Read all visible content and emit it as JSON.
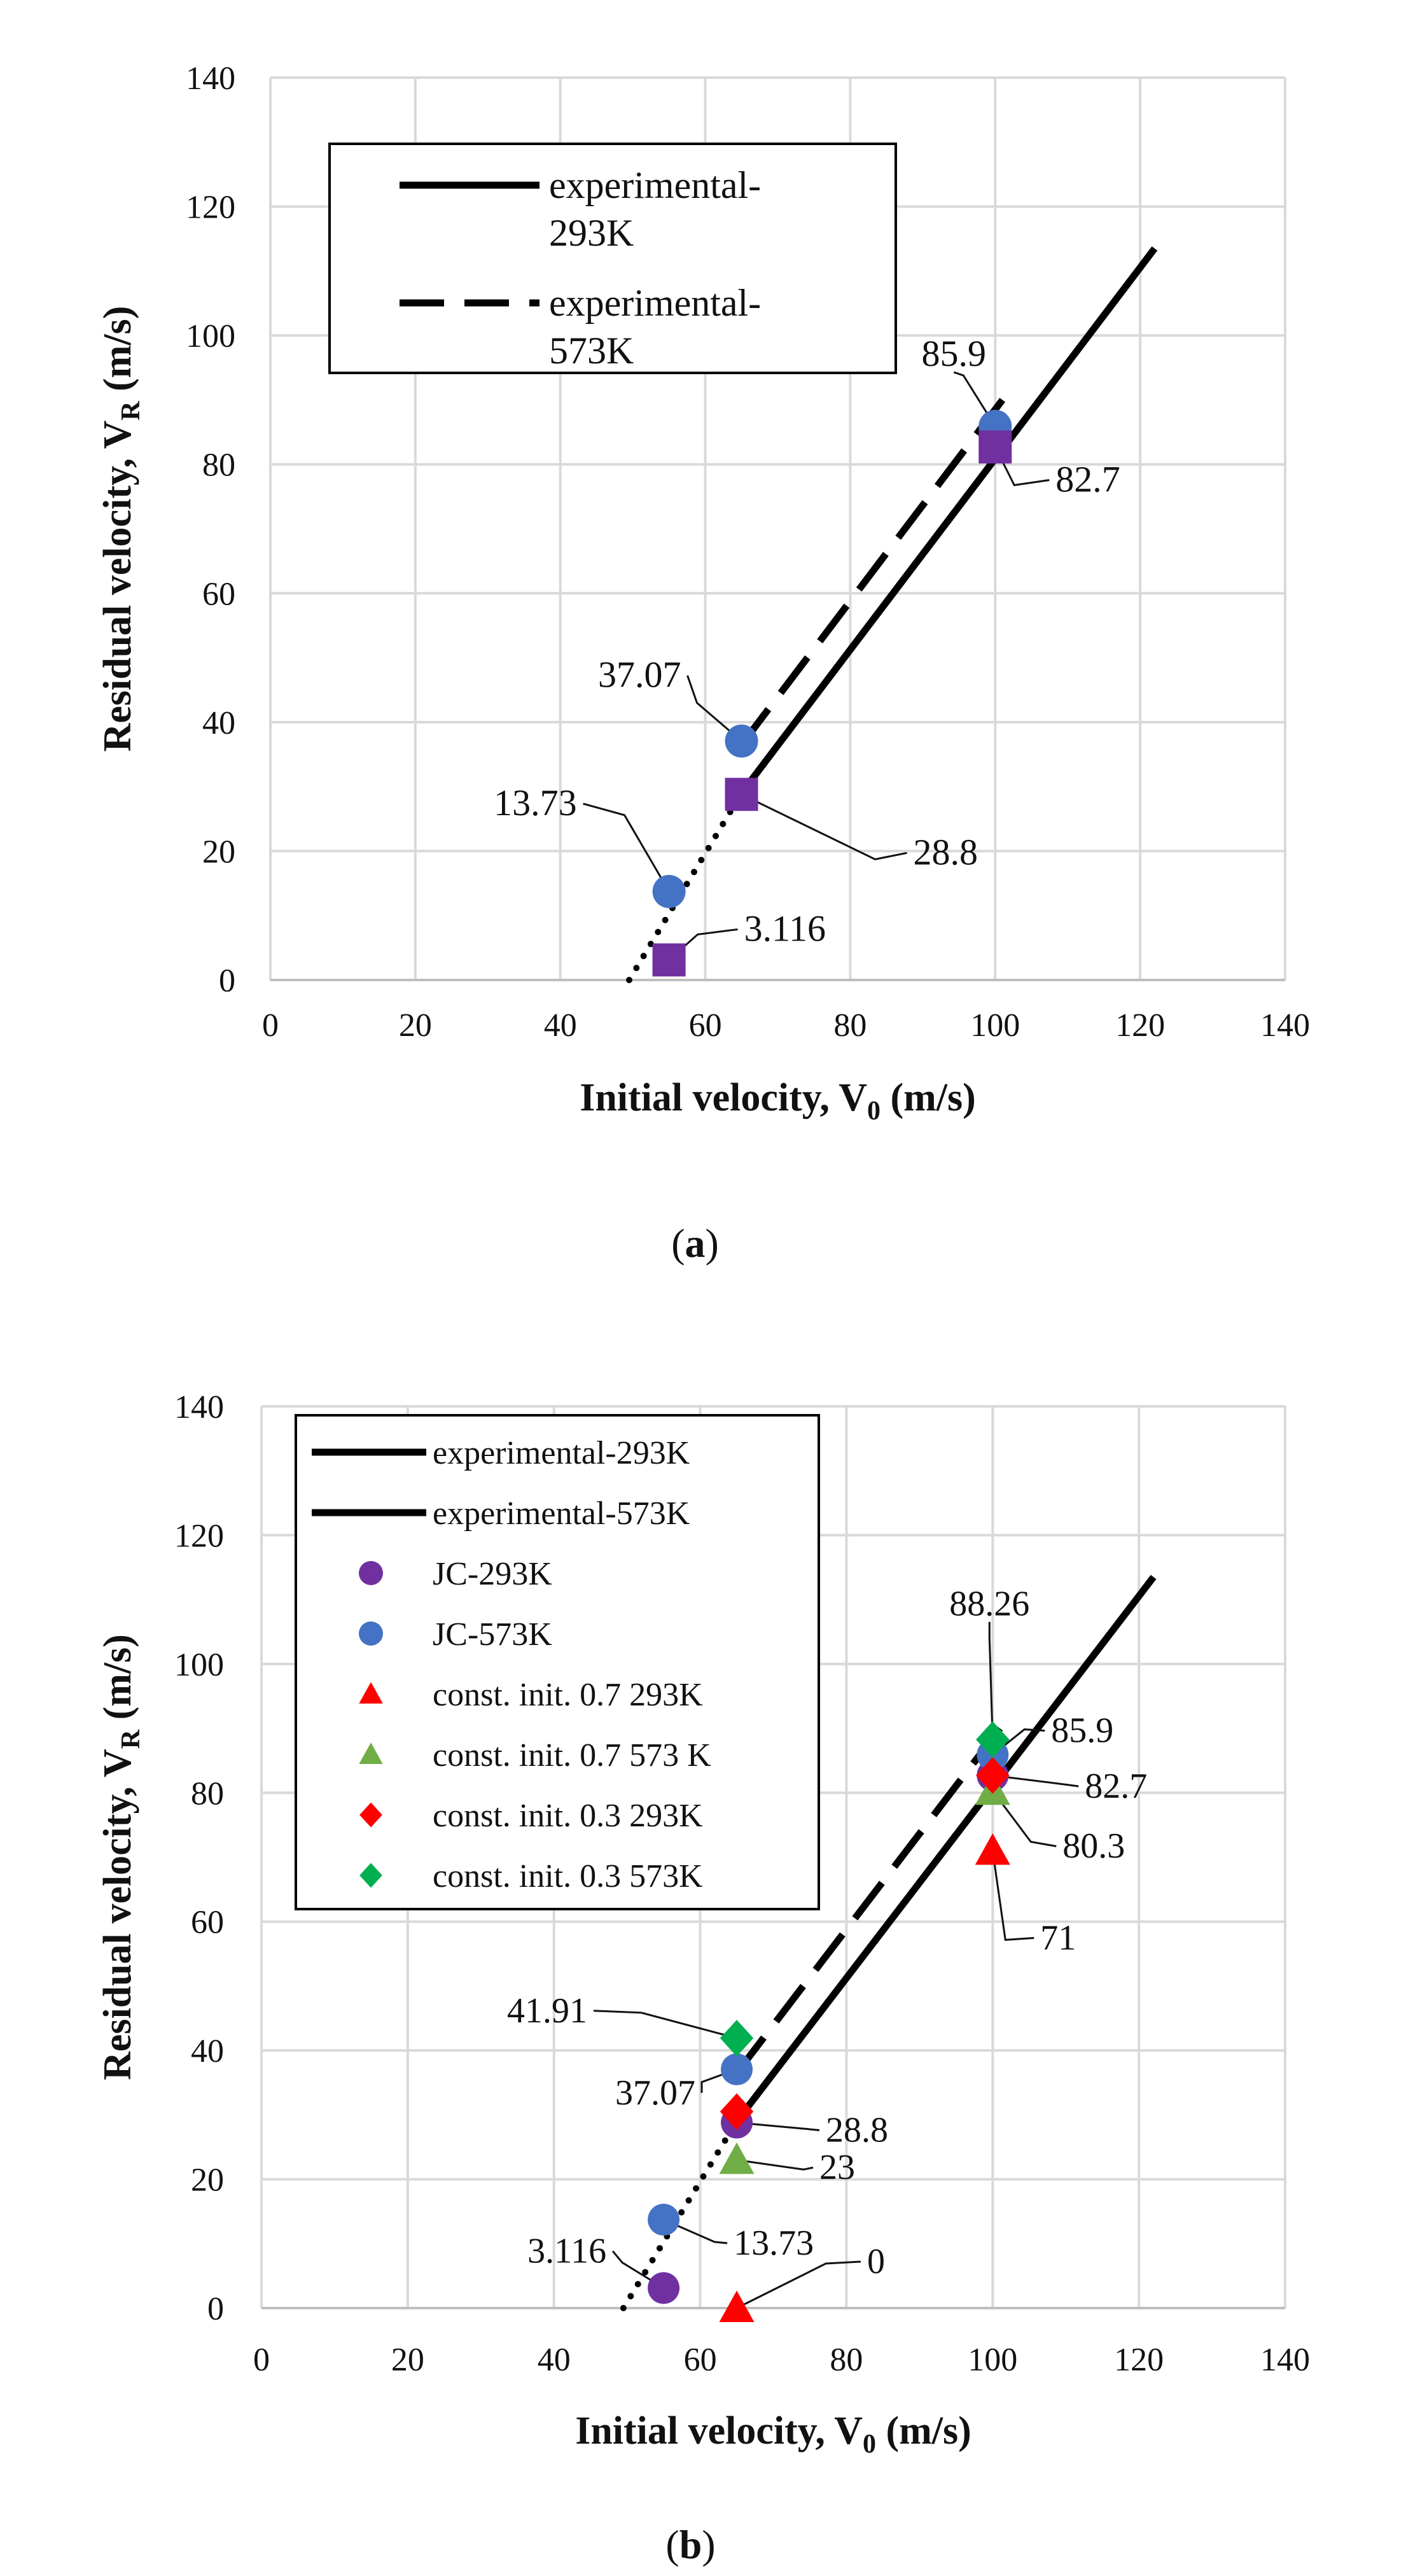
{
  "chart_data": [
    {
      "type": "scatter",
      "caption_letter": "a",
      "xlabel_main": "Initial velocity, V",
      "xlabel_sub": "0",
      "xlabel_unit": " (m/s)",
      "ylabel_main": "Residual velocity, V",
      "ylabel_sub": "R",
      "ylabel_unit": " (m/s)",
      "xlim": [
        0,
        140
      ],
      "ylim": [
        0,
        140
      ],
      "xticks": [
        "0",
        "20",
        "40",
        "60",
        "80",
        "100",
        "120",
        "140"
      ],
      "yticks": [
        "0",
        "20",
        "40",
        "60",
        "80",
        "100",
        "120",
        "140"
      ],
      "grid": true,
      "legend_position": "top-left",
      "legend": [
        {
          "label_line1": "experimental-",
          "label_line2": "293K",
          "style": "solid"
        },
        {
          "label_line1": "experimental-",
          "label_line2": "573K",
          "style": "dashed"
        }
      ],
      "lines": [
        {
          "style": "solid",
          "x": [
            65,
            122
          ],
          "y": [
            29,
            113.5
          ]
        },
        {
          "style": "dashed",
          "x": [
            65,
            101
          ],
          "y": [
            36.5,
            90
          ]
        },
        {
          "style": "dotted",
          "x": [
            49.5,
            65
          ],
          "y": [
            0,
            29
          ]
        }
      ],
      "series": [
        {
          "marker": "circle",
          "color": "#4472c4",
          "points": [
            [
              55,
              13.73
            ],
            [
              65,
              37.07
            ],
            [
              100,
              85.9
            ]
          ]
        },
        {
          "marker": "square",
          "color": "#7030a0",
          "points": [
            [
              55,
              3.116
            ],
            [
              65,
              28.8
            ],
            [
              100,
              82.7
            ]
          ]
        }
      ],
      "data_labels": [
        "13.73",
        "37.07",
        "85.9",
        "3.116",
        "28.8",
        "82.7"
      ]
    },
    {
      "type": "scatter",
      "caption_letter": "b",
      "xlabel_main": "Initial velocity, V",
      "xlabel_sub": "0",
      "xlabel_unit": " (m/s)",
      "ylabel_main": "Residual velocity, V",
      "ylabel_sub": "R",
      "ylabel_unit": " (m/s)",
      "xlim": [
        0,
        140
      ],
      "ylim": [
        0,
        140
      ],
      "xticks": [
        "0",
        "20",
        "40",
        "60",
        "80",
        "100",
        "120",
        "140"
      ],
      "yticks": [
        "0",
        "20",
        "40",
        "60",
        "80",
        "100",
        "120",
        "140"
      ],
      "grid": true,
      "legend_position": "top-left",
      "legend": [
        {
          "label": "experimental-293K",
          "symbol": "line-solid",
          "color": "#000000"
        },
        {
          "label": "experimental-573K",
          "symbol": "line-solid",
          "color": "#000000"
        },
        {
          "label": "JC-293K",
          "symbol": "circle",
          "color": "#7030a0"
        },
        {
          "label": "JC-573K",
          "symbol": "circle",
          "color": "#4472c4"
        },
        {
          "label": "const. init. 0.7 293K",
          "symbol": "triangle",
          "color": "#ff0000"
        },
        {
          "label": "const. init. 0.7 573 K",
          "symbol": "triangle",
          "color": "#70ad47"
        },
        {
          "label": "const. init. 0.3 293K",
          "symbol": "diamond",
          "color": "#ff0000"
        },
        {
          "label": "const. init. 0.3 573K",
          "symbol": "diamond",
          "color": "#00b050"
        }
      ],
      "lines": [
        {
          "style": "solid",
          "x": [
            65,
            122
          ],
          "y": [
            29,
            113.5
          ]
        },
        {
          "style": "dashed",
          "x": [
            65,
            101
          ],
          "y": [
            36.5,
            90
          ]
        },
        {
          "style": "dotted",
          "x": [
            49.5,
            65
          ],
          "y": [
            0,
            29
          ]
        }
      ],
      "series": [
        {
          "name": "JC-293K",
          "marker": "circle",
          "color": "#7030a0",
          "points": [
            [
              55,
              3.116
            ],
            [
              65,
              28.8
            ],
            [
              100,
              82.7
            ]
          ]
        },
        {
          "name": "JC-573K",
          "marker": "circle",
          "color": "#4472c4",
          "points": [
            [
              55,
              13.73
            ],
            [
              65,
              37.07
            ],
            [
              100,
              85.9
            ]
          ]
        },
        {
          "name": "const. init. 0.7 293K",
          "marker": "triangle",
          "color": "#ff0000",
          "points": [
            [
              65,
              0
            ],
            [
              100,
              71
            ]
          ]
        },
        {
          "name": "const. init. 0.7 573 K",
          "marker": "triangle",
          "color": "#70ad47",
          "points": [
            [
              65,
              23
            ],
            [
              100,
              80.3
            ]
          ]
        },
        {
          "name": "const. init. 0.3 293K",
          "marker": "diamond",
          "color": "#ff0000",
          "points": [
            [
              65,
              30.5
            ],
            [
              100,
              82.7
            ]
          ]
        },
        {
          "name": "const. init. 0.3 573K",
          "marker": "diamond",
          "color": "#00b050",
          "points": [
            [
              65,
              41.91
            ],
            [
              100,
              88.26
            ]
          ]
        }
      ],
      "data_labels": [
        "88.26",
        "85.9",
        "82.7",
        "80.3",
        "71",
        "41.91",
        "37.07",
        "28.8",
        "23",
        "13.73",
        "3.116",
        "0"
      ]
    }
  ]
}
